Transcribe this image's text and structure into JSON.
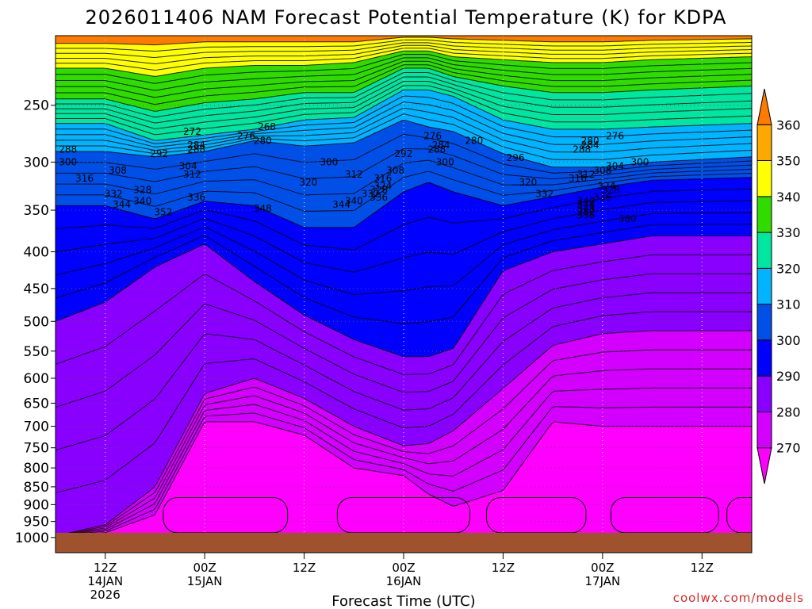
{
  "chart_data": {
    "type": "heatmap",
    "title": "2026011406 NAM Forecast Potential Temperature (K) for KDPA",
    "xlabel": "Forecast Time (UTC)",
    "ylabel": "",
    "credit": "coolwx.com/models",
    "y_scale": "log-pressure",
    "y_ticks_hpa": [
      250,
      300,
      350,
      400,
      450,
      500,
      550,
      600,
      650,
      700,
      750,
      800,
      850,
      900,
      950,
      1000
    ],
    "y_range_hpa": [
      200,
      1050
    ],
    "x_ticks": [
      {
        "hour": 6,
        "label": [
          "12Z",
          "14JAN",
          "2026"
        ]
      },
      {
        "hour": 18,
        "label": [
          "00Z",
          "15JAN"
        ]
      },
      {
        "hour": 30,
        "label": [
          "12Z"
        ]
      },
      {
        "hour": 42,
        "label": [
          "00Z",
          "16JAN"
        ]
      },
      {
        "hour": 54,
        "label": [
          "12Z"
        ]
      },
      {
        "hour": 66,
        "label": [
          "00Z",
          "17JAN"
        ]
      },
      {
        "hour": 78,
        "label": [
          "12Z"
        ]
      }
    ],
    "x_range_hours": [
      0,
      84
    ],
    "grid": "dotted",
    "colorbar": {
      "placement": "right",
      "levels": [
        270,
        280,
        290,
        300,
        310,
        320,
        330,
        340,
        350,
        360
      ],
      "colors": [
        "#ff00ff",
        "#d400ff",
        "#8a00ff",
        "#0000ff",
        "#0050e8",
        "#00b4ff",
        "#00e6a0",
        "#30dc00",
        "#ffff00",
        "#ffa800",
        "#ff7a00"
      ]
    },
    "ground_color": "#a0522d",
    "series": [
      {
        "value": 280,
        "pressure": [
          995,
          985,
          930,
          690,
          690,
          720,
          800,
          820,
          870,
          905,
          860,
          690,
          700,
          700,
          700
        ]
      },
      {
        "value": 290,
        "pressure": [
          995,
          960,
          850,
          630,
          600,
          640,
          700,
          745,
          740,
          710,
          620,
          540,
          520,
          515,
          515
        ]
      },
      {
        "value": 300,
        "pressure": [
          500,
          470,
          420,
          390,
          440,
          490,
          530,
          560,
          560,
          545,
          425,
          400,
          390,
          380,
          380
        ]
      },
      {
        "value": 310,
        "pressure": [
          345,
          345,
          360,
          340,
          345,
          370,
          370,
          330,
          320,
          330,
          345,
          335,
          325,
          318,
          315
        ]
      },
      {
        "value": 320,
        "pressure": [
          290,
          290,
          295,
          290,
          280,
          285,
          282,
          262,
          268,
          272,
          292,
          305,
          305,
          300,
          295
        ]
      },
      {
        "value": 330,
        "pressure": [
          265,
          265,
          280,
          275,
          270,
          262,
          260,
          238,
          238,
          243,
          262,
          270,
          270,
          268,
          265
        ]
      },
      {
        "value": 340,
        "pressure": [
          245,
          245,
          255,
          248,
          245,
          240,
          240,
          222,
          222,
          228,
          235,
          240,
          240,
          238,
          235
        ]
      },
      {
        "value": 350,
        "pressure": [
          222,
          222,
          228,
          222,
          220,
          220,
          218,
          210,
          210,
          214,
          216,
          218,
          218,
          216,
          214
        ]
      },
      {
        "value": 360,
        "pressure": [
          205,
          205,
          206,
          204,
          204,
          204,
          204,
          201,
          201,
          202,
          203,
          204,
          204,
          203,
          202
        ]
      }
    ],
    "series_x_hours": [
      0,
      6,
      12,
      18,
      24,
      30,
      36,
      42,
      45,
      48,
      54,
      60,
      66,
      72,
      84
    ],
    "contour_labels": [
      {
        "t": 13,
        "p": 352,
        "text": "352"
      },
      {
        "t": 25,
        "p": 348,
        "text": "348"
      },
      {
        "t": 34.5,
        "p": 344,
        "text": "344"
      },
      {
        "t": 36,
        "p": 340,
        "text": "340"
      },
      {
        "t": 39,
        "p": 336,
        "text": "336"
      },
      {
        "t": 64,
        "p": 356,
        "text": "356"
      },
      {
        "t": 64,
        "p": 352,
        "text": "352"
      },
      {
        "t": 64,
        "p": 348,
        "text": "348"
      },
      {
        "t": 64,
        "p": 344,
        "text": "344"
      },
      {
        "t": 69,
        "p": 360,
        "text": "360"
      },
      {
        "t": 8,
        "p": 344,
        "text": "344"
      },
      {
        "t": 10.5,
        "p": 340,
        "text": "340"
      },
      {
        "t": 38,
        "p": 332,
        "text": "332"
      },
      {
        "t": 39,
        "p": 328,
        "text": "328"
      },
      {
        "t": 39.5,
        "p": 324,
        "text": "324"
      },
      {
        "t": 17,
        "p": 336,
        "text": "336"
      },
      {
        "t": 64,
        "p": 340,
        "text": "340"
      },
      {
        "t": 66,
        "p": 336,
        "text": "336"
      },
      {
        "t": 7,
        "p": 332,
        "text": "332"
      },
      {
        "t": 10.5,
        "p": 328,
        "text": "328"
      },
      {
        "t": 30.5,
        "p": 320,
        "text": "320"
      },
      {
        "t": 39.5,
        "p": 316,
        "text": "316"
      },
      {
        "t": 59,
        "p": 332,
        "text": "332"
      },
      {
        "t": 67,
        "p": 328,
        "text": "328"
      },
      {
        "t": 66.5,
        "p": 324,
        "text": "324"
      },
      {
        "t": 3.5,
        "p": 316,
        "text": "316"
      },
      {
        "t": 36,
        "p": 312,
        "text": "312"
      },
      {
        "t": 57,
        "p": 320,
        "text": "320"
      },
      {
        "t": 63,
        "p": 316,
        "text": "316"
      },
      {
        "t": 64,
        "p": 312,
        "text": "312"
      },
      {
        "t": 66,
        "p": 308,
        "text": "308"
      },
      {
        "t": 67.5,
        "p": 304,
        "text": "304"
      },
      {
        "t": 16.5,
        "p": 312,
        "text": "312"
      },
      {
        "t": 16,
        "p": 304,
        "text": "304"
      },
      {
        "t": 7.5,
        "p": 308,
        "text": "308"
      },
      {
        "t": 41,
        "p": 308,
        "text": "308"
      },
      {
        "t": 70.5,
        "p": 300,
        "text": "300"
      },
      {
        "t": 55.5,
        "p": 296,
        "text": "296"
      },
      {
        "t": 12.5,
        "p": 292,
        "text": "292"
      },
      {
        "t": 33,
        "p": 300,
        "text": "300"
      },
      {
        "t": 47,
        "p": 300,
        "text": "300"
      },
      {
        "t": 1.5,
        "p": 300,
        "text": "300"
      },
      {
        "t": 17,
        "p": 288,
        "text": "288"
      },
      {
        "t": 63.5,
        "p": 288,
        "text": "288"
      },
      {
        "t": 17,
        "p": 284,
        "text": "284"
      },
      {
        "t": 64.5,
        "p": 284,
        "text": "284"
      },
      {
        "t": 25,
        "p": 280,
        "text": "280"
      },
      {
        "t": 42,
        "p": 292,
        "text": "292"
      },
      {
        "t": 23,
        "p": 276,
        "text": "276"
      },
      {
        "t": 46,
        "p": 288,
        "text": "288"
      },
      {
        "t": 46.5,
        "p": 284,
        "text": "284"
      },
      {
        "t": 64.5,
        "p": 280,
        "text": "280"
      },
      {
        "t": 1.5,
        "p": 288,
        "text": "288"
      },
      {
        "t": 16.5,
        "p": 272,
        "text": "272"
      },
      {
        "t": 25.5,
        "p": 268,
        "text": "268"
      },
      {
        "t": 50.5,
        "p": 280,
        "text": "280"
      },
      {
        "t": 45.5,
        "p": 276,
        "text": "276"
      },
      {
        "t": 67.5,
        "p": 276,
        "text": "276"
      }
    ]
  }
}
